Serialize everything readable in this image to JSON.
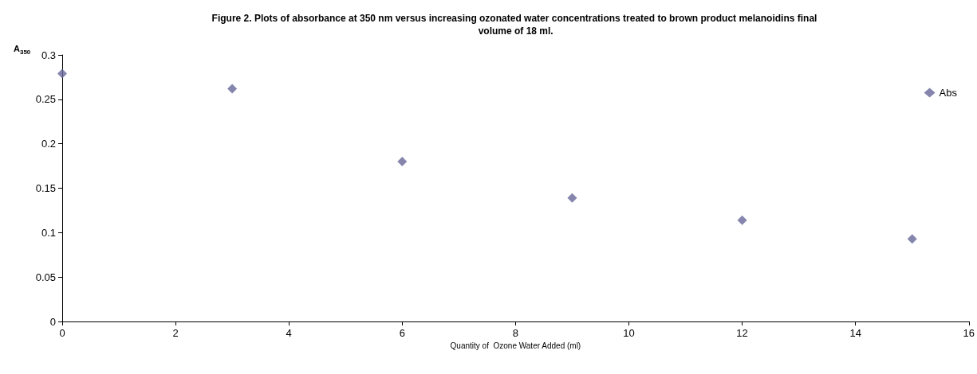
{
  "chart_data": {
    "type": "scatter",
    "title": "Figure 2. Plots of absorbance at 350 nm versus increasing ozonated water concentrations treated to brown product melanoidins final volume of 18 ml.",
    "xlabel": "Quantity of  Ozone Water Added (ml)",
    "ylabel": "A$_{350}$",
    "x": [
      0,
      3,
      6,
      9,
      12,
      15
    ],
    "series": [
      {
        "name": "Abs",
        "color": "#666699",
        "values": [
          0.279,
          0.262,
          0.18,
          0.139,
          0.114,
          0.093
        ]
      }
    ],
    "xlim": [
      0,
      16
    ],
    "xticks": [
      0,
      2,
      4,
      6,
      8,
      10,
      12,
      14,
      16
    ],
    "ylim": [
      0,
      0.3
    ],
    "yticks": [
      0,
      0.05,
      0.1,
      0.15,
      0.2,
      0.25,
      0.3
    ],
    "grid": false,
    "legend": "right",
    "marker": "diamond"
  }
}
